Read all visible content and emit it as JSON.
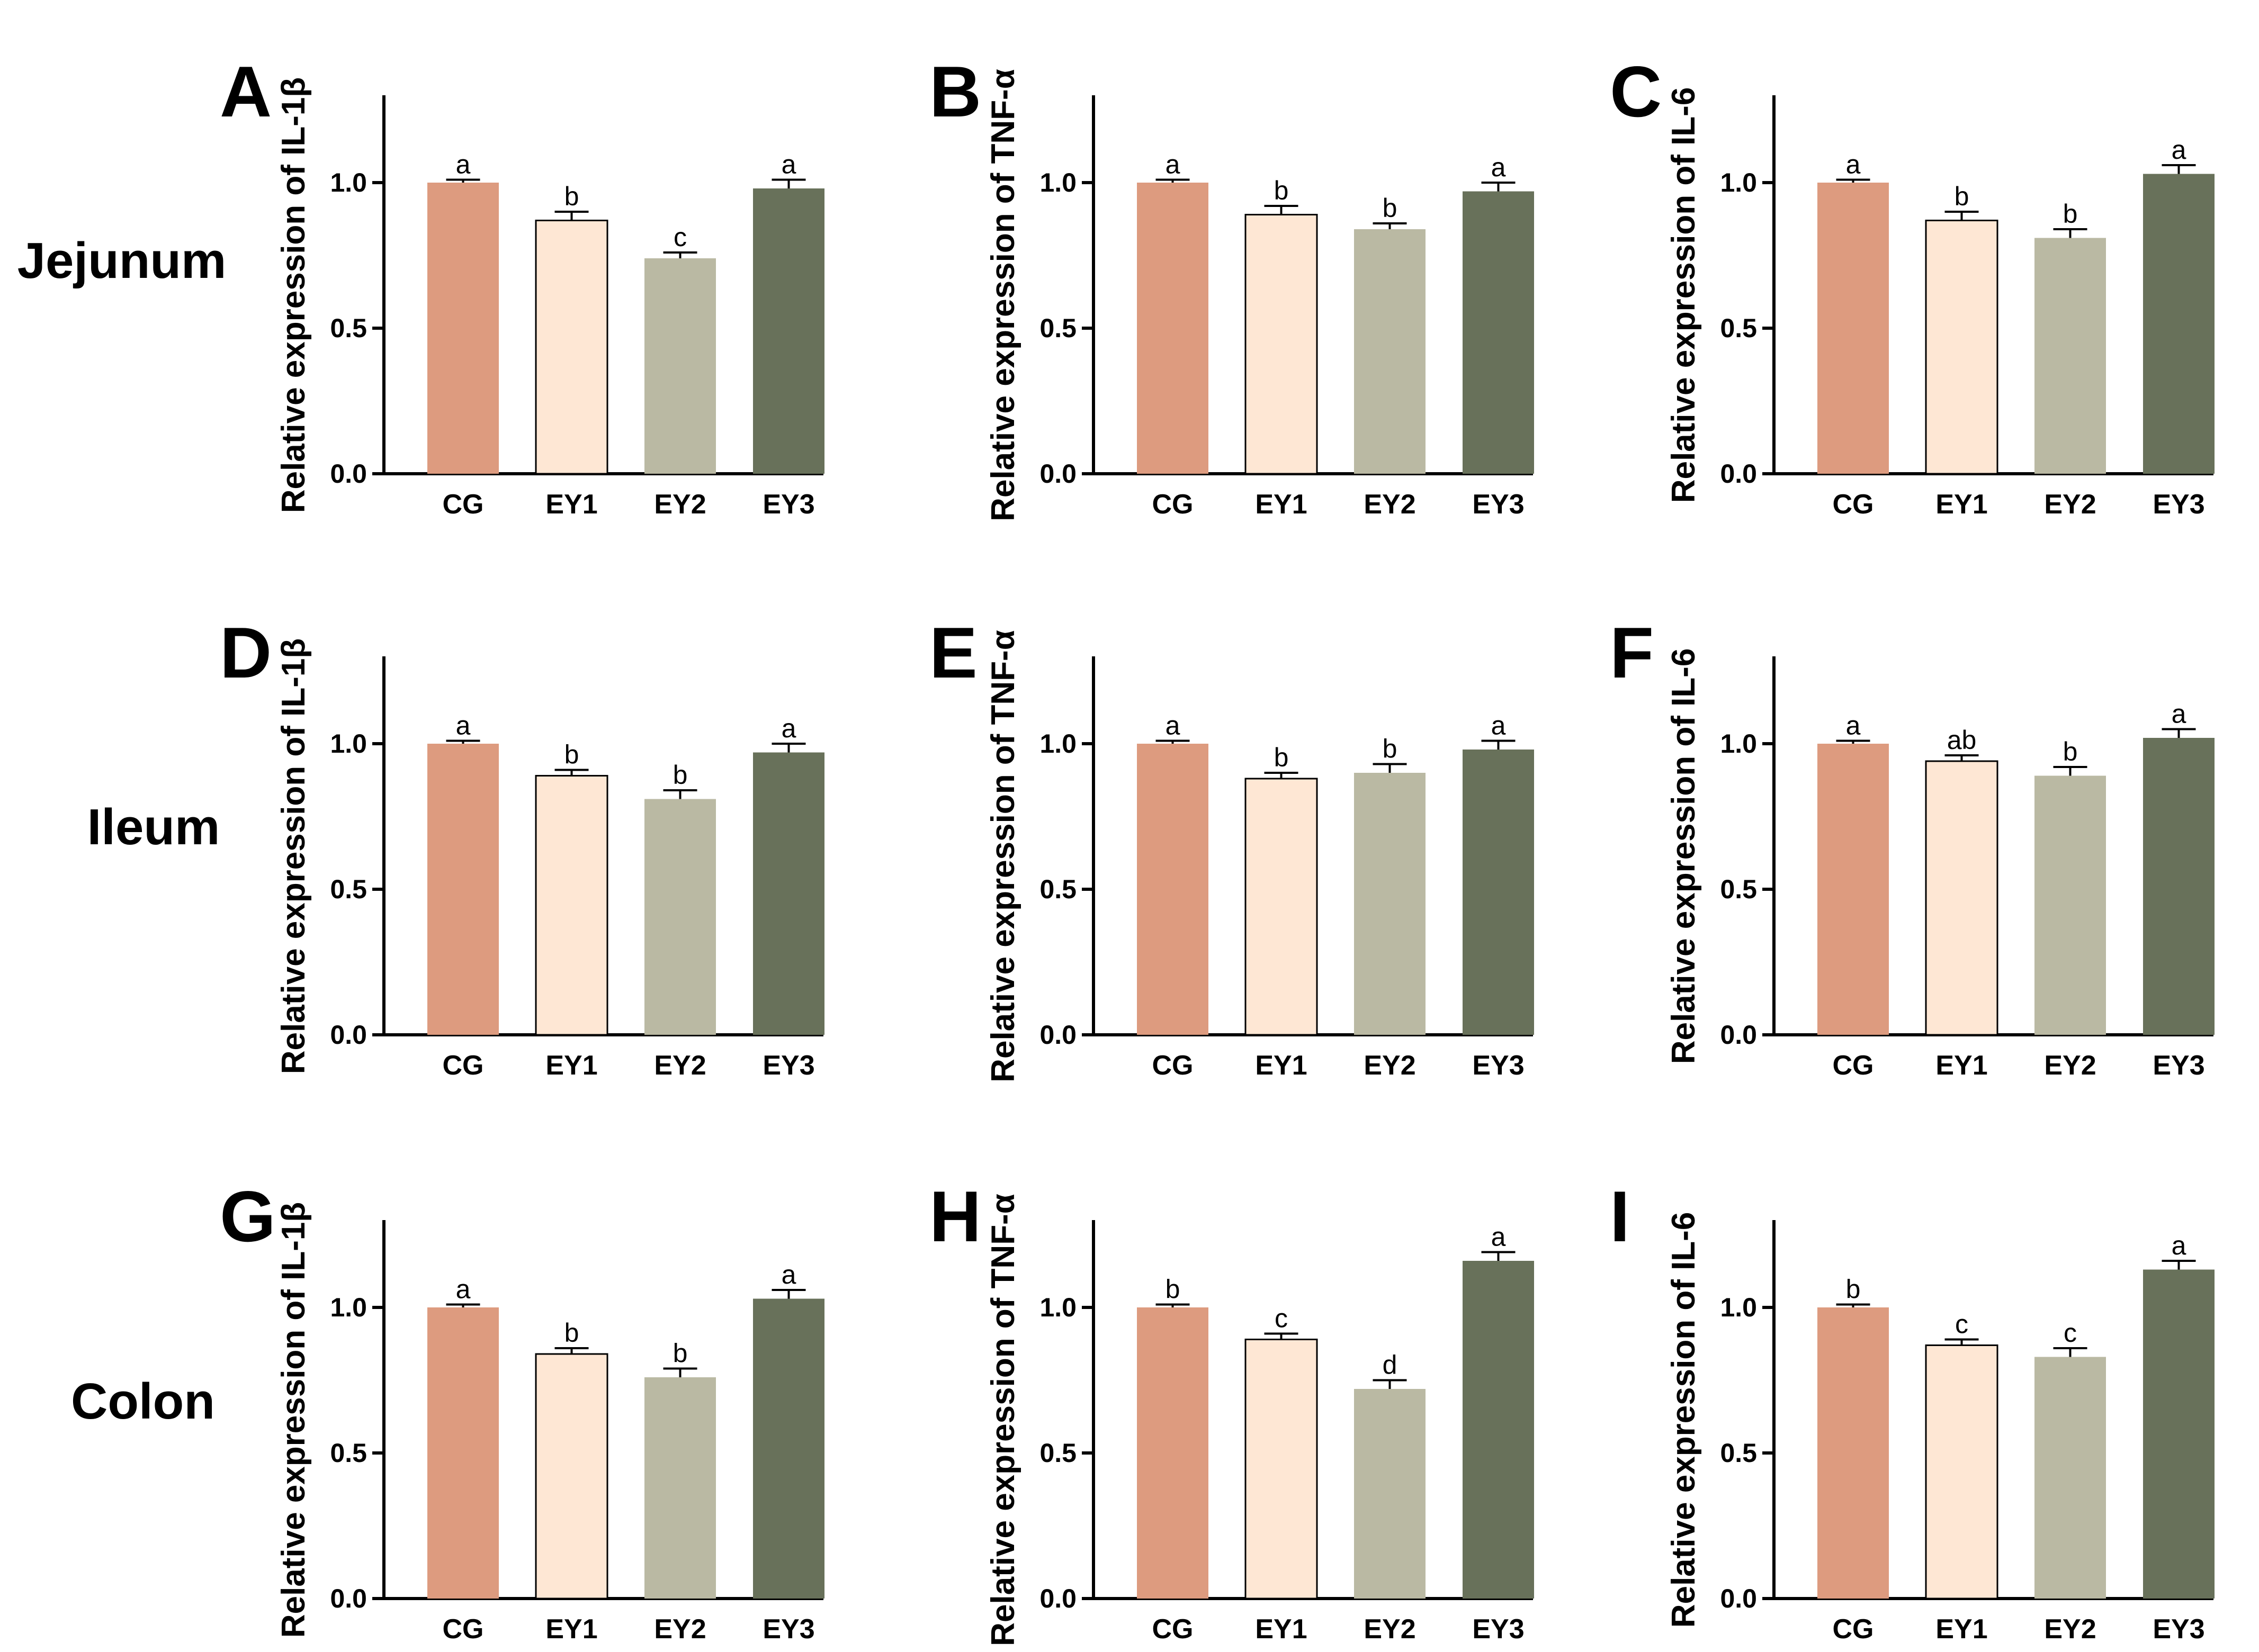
{
  "figure": {
    "rows": [
      "Jejunum",
      "Ileum",
      "Colon"
    ]
  },
  "colors": {
    "CG": "#DD9B7F",
    "EY1": "#FEE7D4",
    "EY2": "#BAB9A3",
    "EY3": "#68715A"
  },
  "chart_data": [
    {
      "type": "bar",
      "panel": "A",
      "row": "Jejunum",
      "ylabel": "Relative expression of IL-1β",
      "categories": [
        "CG",
        "EY1",
        "EY2",
        "EY3"
      ],
      "values": [
        1.0,
        0.87,
        0.74,
        0.98
      ],
      "errors": [
        0.01,
        0.03,
        0.02,
        0.03
      ],
      "significance": [
        "a",
        "b",
        "c",
        "a"
      ],
      "ylim": [
        0,
        1.3
      ],
      "yticks": [
        "0.0",
        "0.5",
        "1.0"
      ]
    },
    {
      "type": "bar",
      "panel": "B",
      "row": "Jejunum",
      "ylabel": "Relative expression of TNF-α",
      "categories": [
        "CG",
        "EY1",
        "EY2",
        "EY3"
      ],
      "values": [
        1.0,
        0.89,
        0.84,
        0.97
      ],
      "errors": [
        0.01,
        0.03,
        0.02,
        0.03
      ],
      "significance": [
        "a",
        "b",
        "b",
        "a"
      ],
      "ylim": [
        0,
        1.3
      ],
      "yticks": [
        "0.0",
        "0.5",
        "1.0"
      ]
    },
    {
      "type": "bar",
      "panel": "C",
      "row": "Jejunum",
      "ylabel": "Relative expression of IL-6",
      "categories": [
        "CG",
        "EY1",
        "EY2",
        "EY3"
      ],
      "values": [
        1.0,
        0.87,
        0.81,
        1.03
      ],
      "errors": [
        0.01,
        0.03,
        0.03,
        0.03
      ],
      "significance": [
        "a",
        "b",
        "b",
        "a"
      ],
      "ylim": [
        0,
        1.3
      ],
      "yticks": [
        "0.0",
        "0.5",
        "1.0"
      ]
    },
    {
      "type": "bar",
      "panel": "D",
      "row": "Ileum",
      "ylabel": "Relative expression of IL-1β",
      "categories": [
        "CG",
        "EY1",
        "EY2",
        "EY3"
      ],
      "values": [
        1.0,
        0.89,
        0.81,
        0.97
      ],
      "errors": [
        0.01,
        0.02,
        0.03,
        0.03
      ],
      "significance": [
        "a",
        "b",
        "b",
        "a"
      ],
      "ylim": [
        0,
        1.3
      ],
      "yticks": [
        "0.0",
        "0.5",
        "1.0"
      ]
    },
    {
      "type": "bar",
      "panel": "E",
      "row": "Ileum",
      "ylabel": "Relative expression of TNF-α",
      "categories": [
        "CG",
        "EY1",
        "EY2",
        "EY3"
      ],
      "values": [
        1.0,
        0.88,
        0.9,
        0.98
      ],
      "errors": [
        0.01,
        0.02,
        0.03,
        0.03
      ],
      "significance": [
        "a",
        "b",
        "b",
        "a"
      ],
      "ylim": [
        0,
        1.3
      ],
      "yticks": [
        "0.0",
        "0.5",
        "1.0"
      ]
    },
    {
      "type": "bar",
      "panel": "F",
      "row": "Ileum",
      "ylabel": "Relative expression of IL-6",
      "categories": [
        "CG",
        "EY1",
        "EY2",
        "EY3"
      ],
      "values": [
        1.0,
        0.94,
        0.89,
        1.02
      ],
      "errors": [
        0.01,
        0.02,
        0.03,
        0.03
      ],
      "significance": [
        "a",
        "ab",
        "b",
        "a"
      ],
      "ylim": [
        0,
        1.3
      ],
      "yticks": [
        "0.0",
        "0.5",
        "1.0"
      ]
    },
    {
      "type": "bar",
      "panel": "G",
      "row": "Colon",
      "ylabel": "Relative expression of IL-1β",
      "categories": [
        "CG",
        "EY1",
        "EY2",
        "EY3"
      ],
      "values": [
        1.0,
        0.84,
        0.76,
        1.03
      ],
      "errors": [
        0.01,
        0.02,
        0.03,
        0.03
      ],
      "significance": [
        "a",
        "b",
        "b",
        "a"
      ],
      "ylim": [
        0,
        1.3
      ],
      "yticks": [
        "0.0",
        "0.5",
        "1.0"
      ]
    },
    {
      "type": "bar",
      "panel": "H",
      "row": "Colon",
      "ylabel": "Relative expression of  TNF-α",
      "categories": [
        "CG",
        "EY1",
        "EY2",
        "EY3"
      ],
      "values": [
        1.0,
        0.89,
        0.72,
        1.16
      ],
      "errors": [
        0.01,
        0.02,
        0.03,
        0.03
      ],
      "significance": [
        "b",
        "c",
        "d",
        "a"
      ],
      "ylim": [
        0,
        1.3
      ],
      "yticks": [
        "0.0",
        "0.5",
        "1.0"
      ]
    },
    {
      "type": "bar",
      "panel": "I",
      "row": "Colon",
      "ylabel": "Relative expression of IL-6",
      "categories": [
        "CG",
        "EY1",
        "EY2",
        "EY3"
      ],
      "values": [
        1.0,
        0.87,
        0.83,
        1.13
      ],
      "errors": [
        0.01,
        0.02,
        0.03,
        0.03
      ],
      "significance": [
        "b",
        "c",
        "c",
        "a"
      ],
      "ylim": [
        0,
        1.3
      ],
      "yticks": [
        "0.0",
        "0.5",
        "1.0"
      ]
    }
  ]
}
